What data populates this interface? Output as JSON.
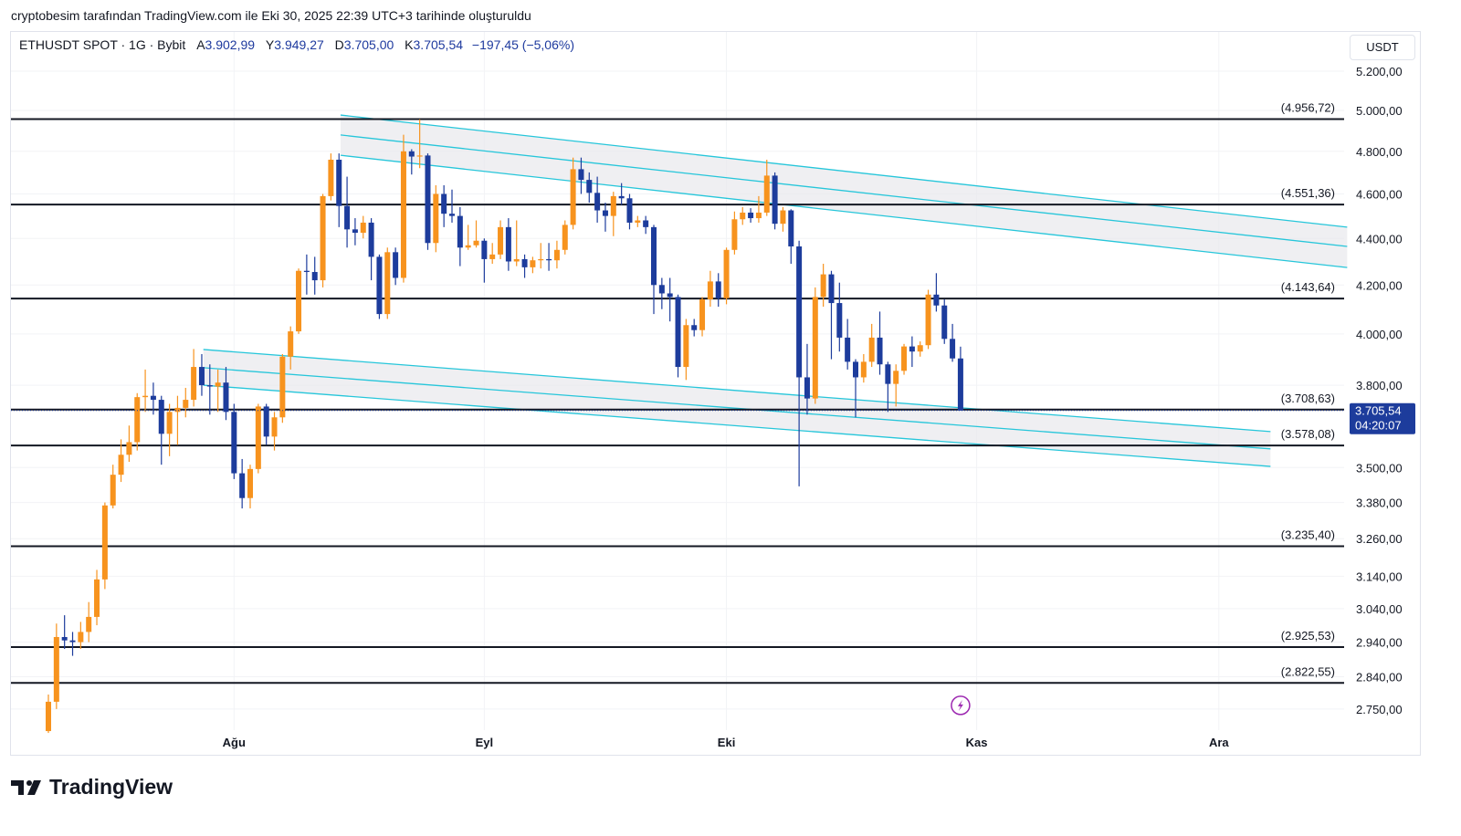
{
  "caption": "cryptobesim tarafından TradingView.com ile Eki 30, 2025 22:39 UTC+3 tarihinde oluşturuldu",
  "legend": {
    "symbol": "ETHUSDT SPOT · 1G · Bybit",
    "open_label": "A",
    "open": "3.902,99",
    "high_label": "Y",
    "high": "3.949,27",
    "low_label": "D",
    "low": "3.705,00",
    "close_label": "K",
    "close": "3.705,54",
    "change": "−197,45 (−5,06%)"
  },
  "currency_unit": "USDT",
  "current_price": {
    "value": 3705.54,
    "label": "3.705,54",
    "countdown": "04:20:07"
  },
  "brand": "TradingView",
  "colors": {
    "up": "#f7931e",
    "down": "#1d3c9c",
    "channel": "#26c6da",
    "band": "#e8e8ec",
    "level": "#131722",
    "badge": "#1d3c9c",
    "alert": "#9c27b0"
  },
  "chart_data": {
    "type": "candlestick",
    "title": "ETHUSDT SPOT · 1G · Bybit",
    "start_date": "2025-07-09",
    "interval": "1D",
    "scale": "log",
    "ylim": [
      2700,
      5300
    ],
    "y_ticks": [
      {
        "v": 5200,
        "label": "5.200,00"
      },
      {
        "v": 5000,
        "label": "5.000,00"
      },
      {
        "v": 4800,
        "label": "4.800,00"
      },
      {
        "v": 4600,
        "label": "4.600,00"
      },
      {
        "v": 4400,
        "label": "4.400,00"
      },
      {
        "v": 4200,
        "label": "4.200,00"
      },
      {
        "v": 4000,
        "label": "4.000,00"
      },
      {
        "v": 3800,
        "label": "3.800,00"
      },
      {
        "v": 3500,
        "label": "3.500,00"
      },
      {
        "v": 3380,
        "label": "3.380,00"
      },
      {
        "v": 3260,
        "label": "3.260,00"
      },
      {
        "v": 3140,
        "label": "3.140,00"
      },
      {
        "v": 3040,
        "label": "3.040,00"
      },
      {
        "v": 2940,
        "label": "2.940,00"
      },
      {
        "v": 2840,
        "label": "2.840,00"
      },
      {
        "v": 2750,
        "label": "2.750,00"
      }
    ],
    "x_ticks": [
      {
        "day": 23,
        "label": "Ağu"
      },
      {
        "day": 54,
        "label": "Eyl"
      },
      {
        "day": 84,
        "label": "Eki"
      },
      {
        "day": 115,
        "label": "Kas"
      },
      {
        "day": 145,
        "label": "Ara"
      }
    ],
    "levels": [
      {
        "v": 4956.72,
        "label": "(4.956,72)"
      },
      {
        "v": 4551.36,
        "label": "(4.551,36)"
      },
      {
        "v": 4143.64,
        "label": "(4.143,64)"
      },
      {
        "v": 3708.63,
        "label": "(3.708,63)"
      },
      {
        "v": 3578.08,
        "label": "(3.578,08)"
      },
      {
        "v": 3235.4,
        "label": "(3.235,40)"
      },
      {
        "v": 2925.53,
        "label": "(2.925,53)"
      },
      {
        "v": 2822.55,
        "label": "(2.822,55)"
      }
    ],
    "channels": [
      {
        "name": "upper-channel",
        "day_start": 36.2,
        "day_end": 160.9,
        "top": [
          4977,
          4450
        ],
        "mid": [
          4879,
          4365
        ],
        "bottom": [
          4781,
          4274
        ]
      },
      {
        "name": "lower-channel",
        "day_start": 19.2,
        "day_end": 151.4,
        "top": [
          3938,
          3628
        ],
        "mid": [
          3867,
          3566
        ],
        "bottom": [
          3800,
          3504
        ]
      }
    ],
    "alert_day": 113,
    "alert_price": 2760,
    "ohlc": [
      [
        2690,
        2790,
        2685,
        2770
      ],
      [
        2770,
        2995,
        2750,
        2955
      ],
      [
        2955,
        3020,
        2920,
        2945
      ],
      [
        2945,
        2970,
        2900,
        2940
      ],
      [
        2940,
        3000,
        2920,
        2970
      ],
      [
        2970,
        3060,
        2940,
        3015
      ],
      [
        3015,
        3160,
        2990,
        3130
      ],
      [
        3130,
        3380,
        3100,
        3370
      ],
      [
        3370,
        3510,
        3360,
        3475
      ],
      [
        3475,
        3600,
        3450,
        3545
      ],
      [
        3545,
        3650,
        3520,
        3590
      ],
      [
        3590,
        3770,
        3560,
        3755
      ],
      [
        3755,
        3860,
        3700,
        3760
      ],
      [
        3760,
        3810,
        3690,
        3745
      ],
      [
        3745,
        3760,
        3510,
        3620
      ],
      [
        3620,
        3730,
        3540,
        3700
      ],
      [
        3700,
        3760,
        3580,
        3715
      ],
      [
        3715,
        3790,
        3680,
        3745
      ],
      [
        3745,
        3940,
        3720,
        3870
      ],
      [
        3870,
        3920,
        3760,
        3800
      ],
      [
        3800,
        3880,
        3690,
        3795
      ],
      [
        3795,
        3860,
        3700,
        3810
      ],
      [
        3810,
        3870,
        3670,
        3700
      ],
      [
        3700,
        3730,
        3460,
        3480
      ],
      [
        3480,
        3530,
        3360,
        3395
      ],
      [
        3395,
        3510,
        3360,
        3495
      ],
      [
        3495,
        3730,
        3480,
        3720
      ],
      [
        3720,
        3730,
        3580,
        3610
      ],
      [
        3610,
        3700,
        3560,
        3680
      ],
      [
        3680,
        3920,
        3660,
        3910
      ],
      [
        3910,
        4030,
        3860,
        4010
      ],
      [
        4010,
        4270,
        4000,
        4260
      ],
      [
        4260,
        4330,
        4160,
        4255
      ],
      [
        4255,
        4320,
        4160,
        4220
      ],
      [
        4220,
        4600,
        4190,
        4590
      ],
      [
        4590,
        4790,
        4570,
        4760
      ],
      [
        4760,
        4790,
        4450,
        4545
      ],
      [
        4545,
        4680,
        4360,
        4440
      ],
      [
        4440,
        4490,
        4370,
        4425
      ],
      [
        4425,
        4500,
        4400,
        4470
      ],
      [
        4470,
        4490,
        4220,
        4320
      ],
      [
        4320,
        4330,
        4060,
        4080
      ],
      [
        4080,
        4360,
        4060,
        4340
      ],
      [
        4340,
        4360,
        4200,
        4230
      ],
      [
        4230,
        4880,
        4210,
        4800
      ],
      [
        4800,
        4810,
        4690,
        4775
      ],
      [
        4775,
        4956,
        4720,
        4780
      ],
      [
        4780,
        4790,
        4350,
        4380
      ],
      [
        4380,
        4640,
        4340,
        4600
      ],
      [
        4600,
        4640,
        4450,
        4510
      ],
      [
        4510,
        4620,
        4470,
        4500
      ],
      [
        4500,
        4540,
        4280,
        4360
      ],
      [
        4360,
        4460,
        4350,
        4370
      ],
      [
        4370,
        4480,
        4360,
        4390
      ],
      [
        4390,
        4400,
        4210,
        4310
      ],
      [
        4310,
        4380,
        4290,
        4330
      ],
      [
        4330,
        4480,
        4310,
        4450
      ],
      [
        4450,
        4490,
        4260,
        4300
      ],
      [
        4300,
        4480,
        4280,
        4310
      ],
      [
        4310,
        4330,
        4230,
        4275
      ],
      [
        4275,
        4320,
        4250,
        4305
      ],
      [
        4305,
        4380,
        4270,
        4310
      ],
      [
        4310,
        4380,
        4260,
        4305
      ],
      [
        4305,
        4390,
        4270,
        4350
      ],
      [
        4350,
        4480,
        4330,
        4460
      ],
      [
        4460,
        4770,
        4440,
        4715
      ],
      [
        4715,
        4770,
        4600,
        4665
      ],
      [
        4665,
        4700,
        4560,
        4605
      ],
      [
        4605,
        4680,
        4470,
        4525
      ],
      [
        4525,
        4560,
        4430,
        4500
      ],
      [
        4500,
        4610,
        4410,
        4590
      ],
      [
        4590,
        4650,
        4550,
        4580
      ],
      [
        4580,
        4600,
        4440,
        4470
      ],
      [
        4470,
        4500,
        4450,
        4480
      ],
      [
        4480,
        4500,
        4420,
        4450
      ],
      [
        4450,
        4460,
        4080,
        4200
      ],
      [
        4200,
        4230,
        4100,
        4165
      ],
      [
        4165,
        4230,
        4050,
        4150
      ],
      [
        4150,
        4160,
        3830,
        3870
      ],
      [
        3870,
        4060,
        3820,
        4035
      ],
      [
        4035,
        4060,
        3990,
        4015
      ],
      [
        4015,
        4150,
        3990,
        4140
      ],
      [
        4140,
        4260,
        4110,
        4215
      ],
      [
        4215,
        4250,
        4110,
        4145
      ],
      [
        4145,
        4360,
        4120,
        4350
      ],
      [
        4350,
        4520,
        4330,
        4485
      ],
      [
        4485,
        4540,
        4460,
        4515
      ],
      [
        4515,
        4535,
        4470,
        4490
      ],
      [
        4490,
        4590,
        4470,
        4515
      ],
      [
        4515,
        4760,
        4500,
        4685
      ],
      [
        4685,
        4700,
        4440,
        4465
      ],
      [
        4465,
        4540,
        4430,
        4525
      ],
      [
        4525,
        4530,
        4290,
        4365
      ],
      [
        4365,
        4390,
        3435,
        3830
      ],
      [
        3830,
        3960,
        3690,
        3750
      ],
      [
        3750,
        4190,
        3730,
        4150
      ],
      [
        4150,
        4290,
        4110,
        4245
      ],
      [
        4245,
        4260,
        3900,
        4125
      ],
      [
        4125,
        4210,
        3930,
        3985
      ],
      [
        3985,
        4060,
        3860,
        3890
      ],
      [
        3890,
        3900,
        3680,
        3830
      ],
      [
        3830,
        3920,
        3810,
        3890
      ],
      [
        3890,
        4040,
        3870,
        3985
      ],
      [
        3985,
        4090,
        3840,
        3880
      ],
      [
        3880,
        3890,
        3700,
        3805
      ],
      [
        3805,
        3880,
        3720,
        3855
      ],
      [
        3855,
        3960,
        3840,
        3950
      ],
      [
        3950,
        3990,
        3870,
        3930
      ],
      [
        3930,
        3970,
        3910,
        3955
      ],
      [
        3955,
        4180,
        3940,
        4160
      ],
      [
        4160,
        4250,
        4090,
        4115
      ],
      [
        4115,
        4140,
        3960,
        3980
      ],
      [
        3980,
        4040,
        3890,
        3903
      ],
      [
        3902.99,
        3949.27,
        3705.0,
        3705.54
      ]
    ]
  }
}
